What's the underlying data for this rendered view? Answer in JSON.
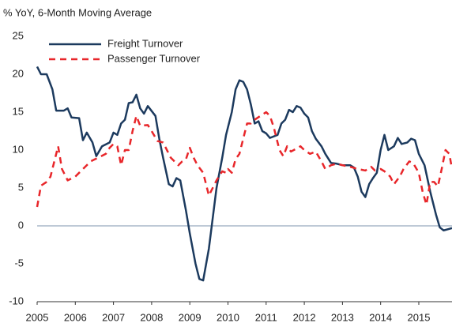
{
  "chart_data": {
    "type": "line",
    "title": "% YoY, 6-Month Moving Average",
    "xlim": [
      2005,
      2015.87
    ],
    "xticks": [
      2005,
      2006,
      2007,
      2008,
      2009,
      2010,
      2011,
      2012,
      2013,
      2014,
      2015
    ],
    "ylim": [
      -10,
      25
    ],
    "yticks": [
      -10,
      -5,
      0,
      5,
      10,
      15,
      20,
      25
    ],
    "grid": false,
    "legend": "upper left",
    "series": [
      {
        "name": "Freight Turnover",
        "color": "#1c3a5e",
        "dash": false,
        "x": [
          2005.0,
          2005.1,
          2005.25,
          2005.4,
          2005.5,
          2005.7,
          2005.8,
          2005.9,
          2006.1,
          2006.2,
          2006.3,
          2006.45,
          2006.55,
          2006.7,
          2006.9,
          2007.0,
          2007.1,
          2007.2,
          2007.3,
          2007.4,
          2007.5,
          2007.6,
          2007.7,
          2007.8,
          2007.9,
          2008.1,
          2008.2,
          2008.3,
          2008.45,
          2008.55,
          2008.65,
          2008.75,
          2008.9,
          2009.0,
          2009.15,
          2009.25,
          2009.35,
          2009.5,
          2009.6,
          2009.7,
          2009.85,
          2009.95,
          2010.1,
          2010.2,
          2010.3,
          2010.4,
          2010.5,
          2010.6,
          2010.7,
          2010.8,
          2010.9,
          2011.0,
          2011.1,
          2011.3,
          2011.4,
          2011.5,
          2011.6,
          2011.7,
          2011.8,
          2011.9,
          2012.0,
          2012.1,
          2012.2,
          2012.3,
          2012.45,
          2012.55,
          2012.7,
          2012.85,
          2013.0,
          2013.2,
          2013.3,
          2013.4,
          2013.5,
          2013.6,
          2013.7,
          2013.8,
          2013.9,
          2014.0,
          2014.1,
          2014.2,
          2014.35,
          2014.45,
          2014.55,
          2014.7,
          2014.8,
          2014.9,
          2015.0,
          2015.15,
          2015.3,
          2015.45,
          2015.55,
          2015.65,
          2015.8,
          2015.87
        ],
        "values": [
          21,
          20,
          20,
          18,
          15.2,
          15.2,
          15.5,
          14.3,
          14.2,
          11.3,
          12.3,
          11,
          9.2,
          10.5,
          11,
          12.3,
          12,
          13.5,
          14,
          16.2,
          16.3,
          17.3,
          15.5,
          14.8,
          15.8,
          14.5,
          11.5,
          9,
          5.5,
          5.2,
          6.3,
          6,
          2,
          -1,
          -5,
          -7,
          -7.2,
          -3,
          1,
          5,
          9,
          12,
          15,
          18,
          19.2,
          19,
          18,
          16,
          13.5,
          13.8,
          12.5,
          12.2,
          11.6,
          12,
          13.5,
          14,
          15.3,
          15,
          15.8,
          15.6,
          14.8,
          14.3,
          12.5,
          11.5,
          10.5,
          9.5,
          8.3,
          8.2,
          8,
          8,
          7.7,
          6.5,
          4.5,
          3.8,
          5.5,
          6.3,
          7,
          10,
          12,
          10,
          10.5,
          11.6,
          10.8,
          11,
          11.5,
          11.3,
          9.5,
          8,
          4.5,
          1.5,
          -0.2,
          -0.6,
          -0.4,
          -0.3
        ]
      },
      {
        "name": "Passenger Turnover",
        "color": "#e8262a",
        "dash": true,
        "x": [
          2005.0,
          2005.1,
          2005.25,
          2005.35,
          2005.45,
          2005.55,
          2005.65,
          2005.8,
          2006.0,
          2006.2,
          2006.4,
          2006.6,
          2006.8,
          2006.9,
          2007.0,
          2007.1,
          2007.2,
          2007.3,
          2007.4,
          2007.5,
          2007.6,
          2007.7,
          2007.9,
          2008.0,
          2008.15,
          2008.3,
          2008.5,
          2008.7,
          2008.8,
          2008.9,
          2009.0,
          2009.1,
          2009.2,
          2009.35,
          2009.5,
          2009.6,
          2009.7,
          2009.85,
          2009.95,
          2010.0,
          2010.1,
          2010.2,
          2010.3,
          2010.4,
          2010.5,
          2010.6,
          2010.7,
          2010.85,
          2011.0,
          2011.1,
          2011.2,
          2011.35,
          2011.45,
          2011.55,
          2011.65,
          2011.8,
          2011.9,
          2012.0,
          2012.15,
          2012.3,
          2012.45,
          2012.55,
          2012.7,
          2012.85,
          2013.0,
          2013.2,
          2013.4,
          2013.6,
          2013.75,
          2013.85,
          2014.0,
          2014.1,
          2014.25,
          2014.35,
          2014.5,
          2014.6,
          2014.75,
          2014.85,
          2015.0,
          2015.1,
          2015.2,
          2015.3,
          2015.4,
          2015.5,
          2015.6,
          2015.7,
          2015.8,
          2015.87
        ],
        "values": [
          2.5,
          5.3,
          5.8,
          6.5,
          8.5,
          10.5,
          7.5,
          6,
          6.5,
          7.5,
          8.5,
          9,
          9.5,
          10.3,
          10.8,
          10.5,
          8,
          10,
          10,
          12.5,
          14.5,
          13.2,
          13.3,
          12.5,
          11.2,
          11,
          9,
          8,
          8.5,
          8.8,
          10.3,
          9,
          8,
          7,
          4,
          5,
          6,
          7.2,
          7,
          7.5,
          7,
          8.8,
          9.5,
          11.5,
          13.5,
          13.5,
          14,
          14.5,
          15,
          14.5,
          13,
          10,
          9.2,
          10.5,
          9.8,
          10.2,
          10.5,
          10,
          9.5,
          9.8,
          8.5,
          7.5,
          8,
          8.2,
          8,
          7.8,
          7.5,
          7.3,
          7.8,
          7.3,
          7.5,
          7.2,
          6.5,
          5.5,
          6.5,
          7.5,
          8.5,
          8.3,
          7,
          4.5,
          2.8,
          5.8,
          5.8,
          5.2,
          7.5,
          10,
          9.5,
          7.5
        ]
      }
    ]
  }
}
